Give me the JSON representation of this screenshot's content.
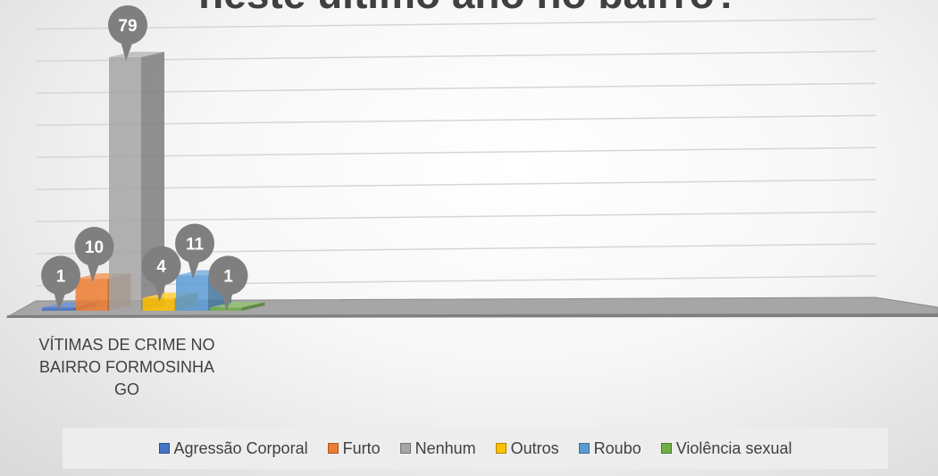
{
  "chart_data": {
    "type": "bar",
    "title": "neste último ano no bairro?",
    "categories": [
      "VÍTIMAS DE CRIME NO BAIRRO FORMOSINHA GO"
    ],
    "category_lines": [
      "VÍTIMAS DE CRIME NO",
      "BAIRRO FORMOSINHA",
      "GO"
    ],
    "series": [
      {
        "name": "Agressão Corporal",
        "values": [
          1
        ],
        "color": "#4472C4"
      },
      {
        "name": "Furto",
        "values": [
          10
        ],
        "color": "#ED7D31"
      },
      {
        "name": "Nenhum",
        "values": [
          79
        ],
        "color": "#A5A5A5"
      },
      {
        "name": "Outros",
        "values": [
          4
        ],
        "color": "#FFC000"
      },
      {
        "name": "Roubo",
        "values": [
          11
        ],
        "color": "#5B9BD5"
      },
      {
        "name": "Violência sexual",
        "values": [
          1
        ],
        "color": "#70AD47"
      }
    ],
    "ylim": [
      0,
      90
    ],
    "grid": true,
    "legend": "bottom",
    "data_labels": true
  }
}
